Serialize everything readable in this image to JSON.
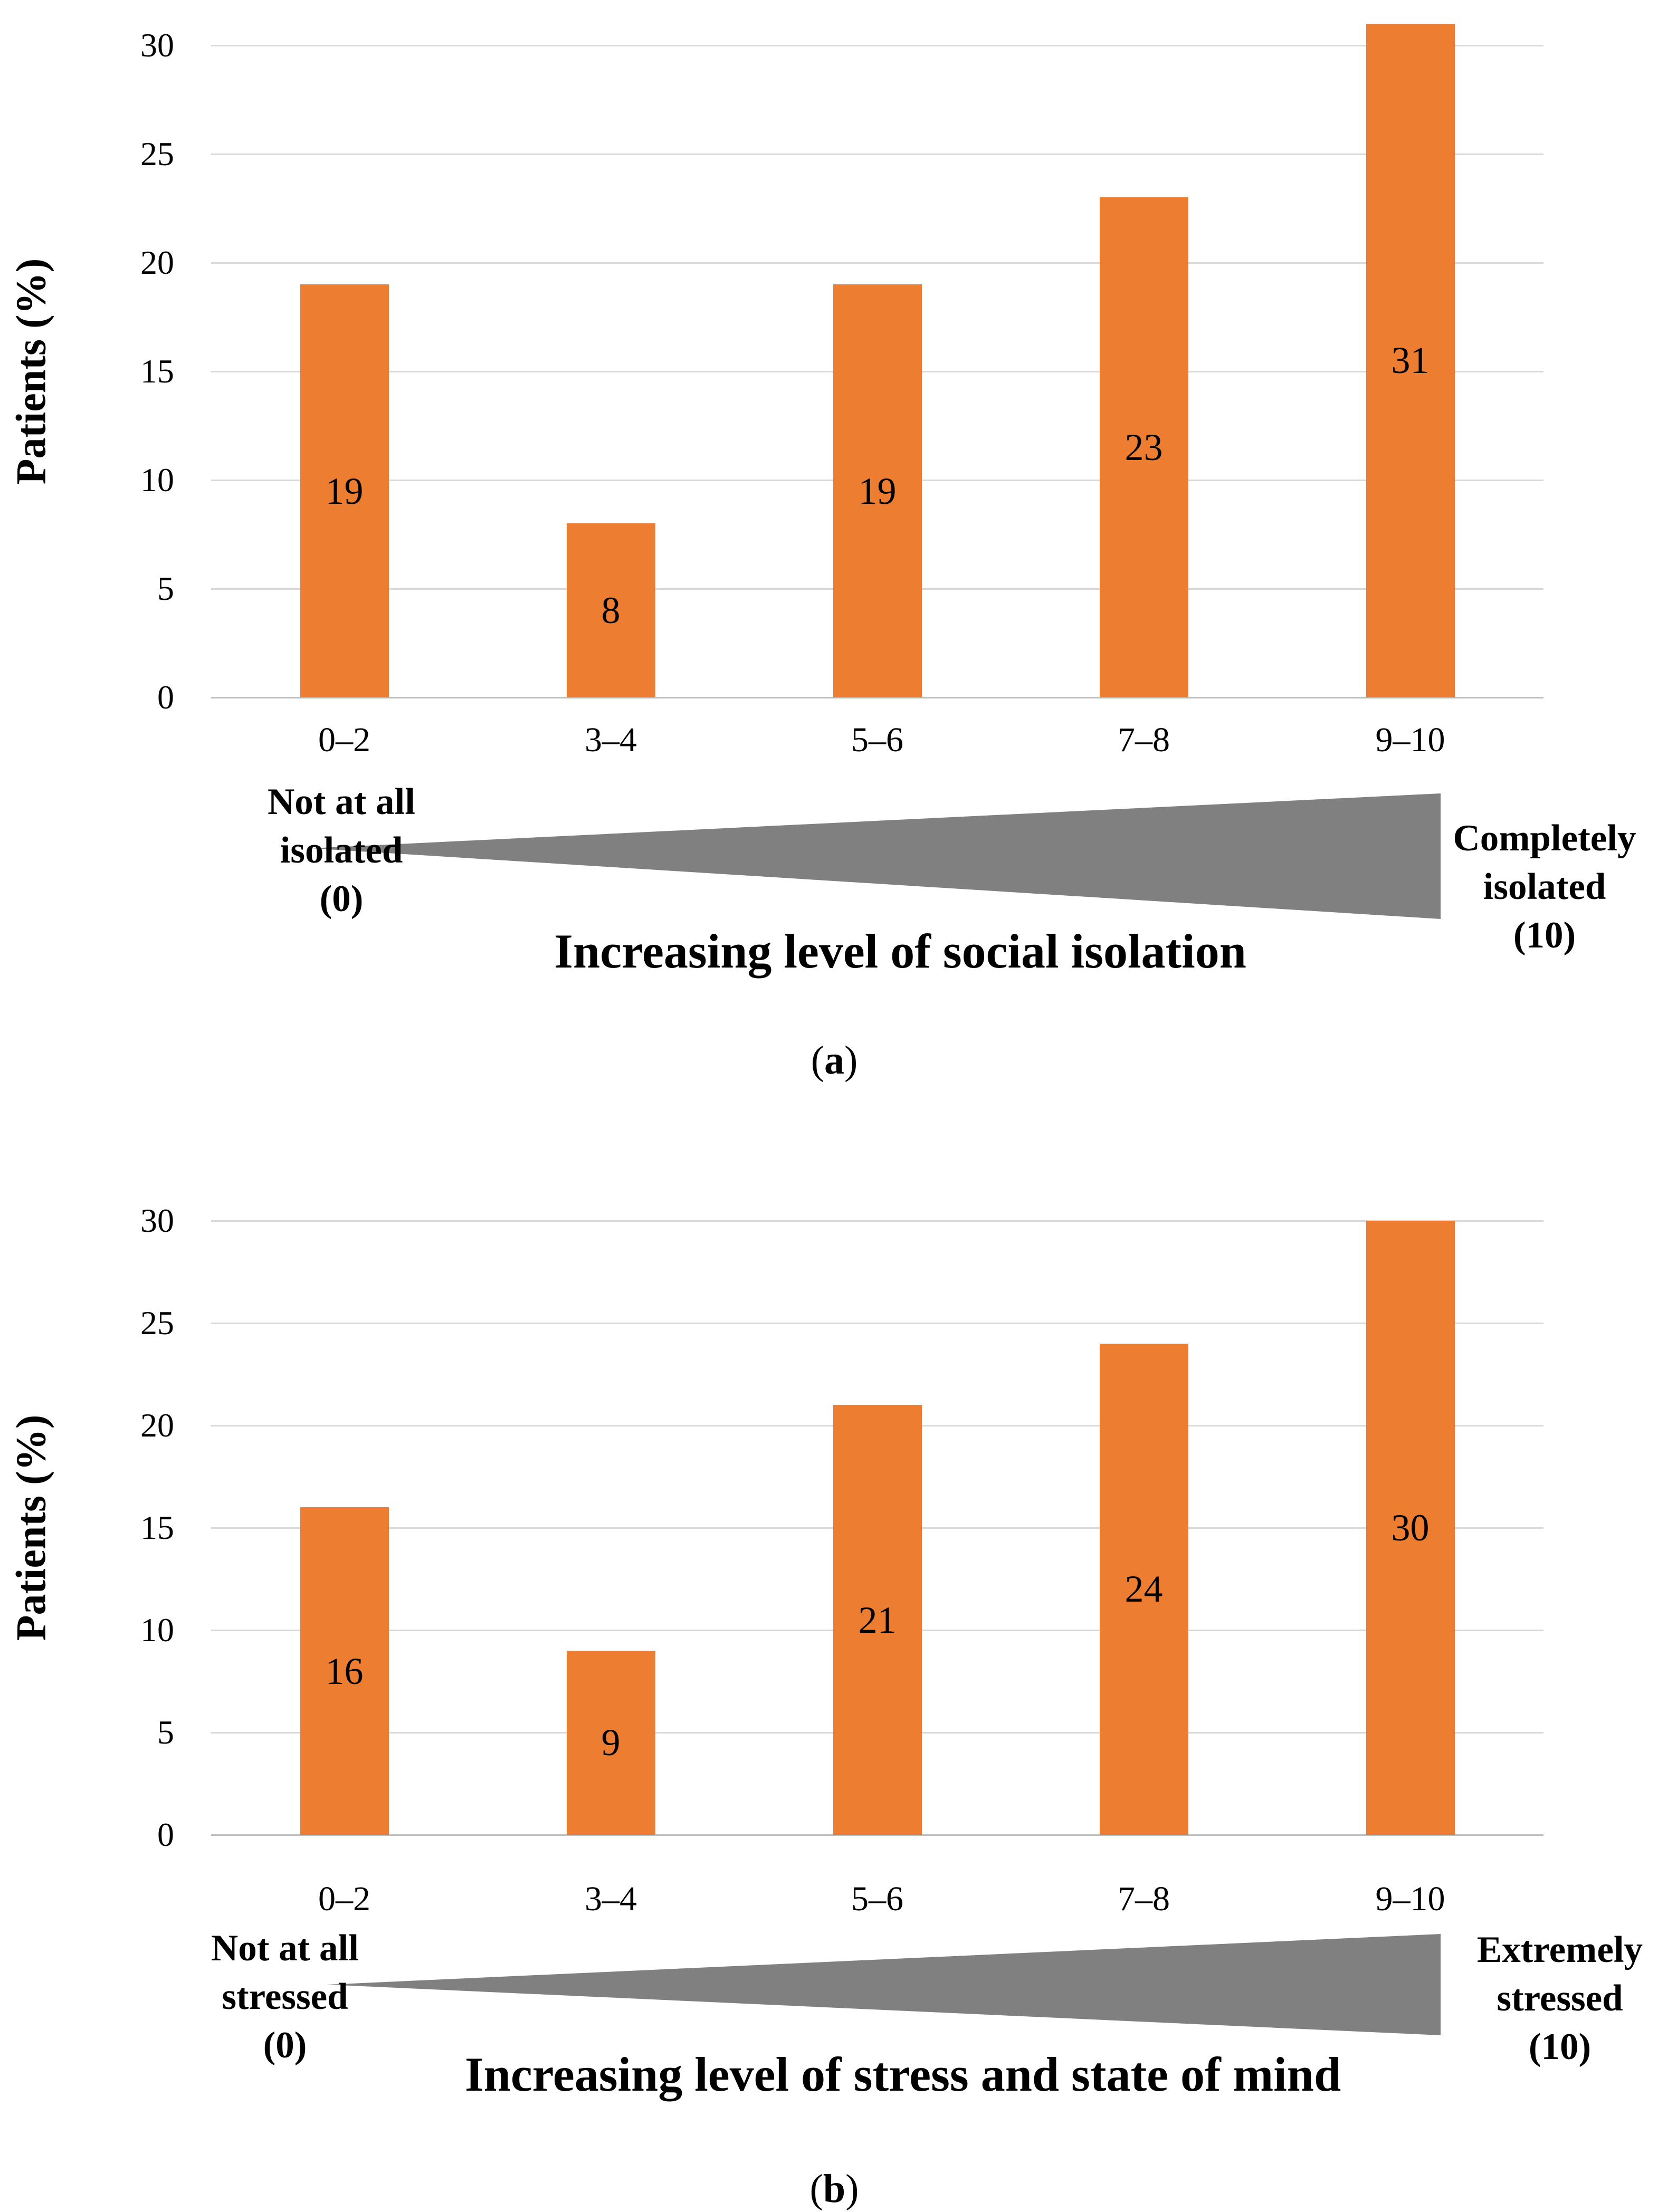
{
  "figure": {
    "description": "Two-panel bar chart figure of patient percentages by self-rated scale bins",
    "panel_count": 2
  },
  "colors": {
    "bar": "#ED7D31",
    "wedge": "#808080",
    "gridline": "#D9D9D9",
    "axis_line": "#BFBFBF",
    "text": "#000000",
    "background": "#FFFFFF"
  },
  "chart_data": [
    {
      "type": "bar",
      "panel": "a",
      "title": "",
      "categories": [
        "0–2",
        "3–4",
        "5–6",
        "7–8",
        "9–10"
      ],
      "values": [
        19,
        8,
        19,
        23,
        31
      ],
      "data_labels": [
        "19",
        "8",
        "19",
        "23",
        "31"
      ],
      "ylabel": "Patients (%)",
      "xlabel": "Increasing level of social isolation",
      "ylim": [
        0,
        30
      ],
      "yticks": [
        "0",
        "5",
        "10",
        "15",
        "20",
        "25",
        "30"
      ],
      "grid": "horizontal",
      "legend": "none",
      "left_label_lines": [
        "Not at all",
        "isolated",
        "(0)"
      ],
      "right_label_lines": [
        "Completely",
        "isolated",
        "(10)"
      ],
      "caption_open": "(",
      "caption_letter": "a",
      "caption_close": ")"
    },
    {
      "type": "bar",
      "panel": "b",
      "title": "",
      "categories": [
        "0–2",
        "3–4",
        "5–6",
        "7–8",
        "9–10"
      ],
      "values": [
        16,
        9,
        21,
        24,
        30
      ],
      "data_labels": [
        "16",
        "9",
        "21",
        "24",
        "30"
      ],
      "ylabel": "Patients (%)",
      "xlabel": "Increasing level of stress and state of mind",
      "ylim": [
        0,
        30
      ],
      "yticks": [
        "0",
        "5",
        "10",
        "15",
        "20",
        "25",
        "30"
      ],
      "grid": "horizontal",
      "legend": "none",
      "left_label_lines": [
        "Not at all",
        "stressed",
        "(0)"
      ],
      "right_label_lines": [
        "Extremely",
        "stressed",
        "(10)"
      ],
      "caption_open": "(",
      "caption_letter": "b",
      "caption_close": ")"
    }
  ]
}
